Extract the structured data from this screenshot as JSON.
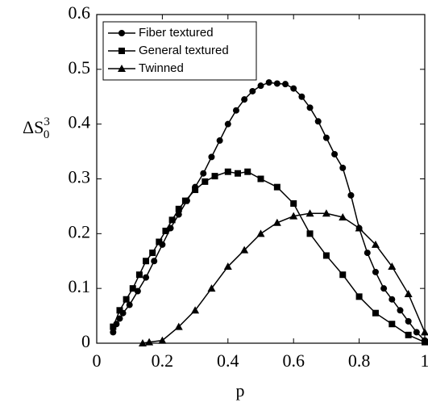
{
  "chart_data": {
    "type": "line",
    "xlabel": "p",
    "ylabel": {
      "base": "ΔS",
      "sub": "0",
      "sup": "3"
    },
    "xlim": [
      0,
      1
    ],
    "xticks": [
      0,
      0.2,
      0.4,
      0.6,
      0.8,
      1
    ],
    "ylim": [
      0,
      0.6
    ],
    "yticks": [
      0,
      0.1,
      0.2,
      0.3,
      0.4,
      0.5,
      0.6
    ],
    "legend": "upper left",
    "series": [
      {
        "name": "Fiber textured",
        "color": "#000000",
        "marker": "circle",
        "x": [
          0.05,
          0.06,
          0.07,
          0.08,
          0.1,
          0.125,
          0.15,
          0.175,
          0.2,
          0.225,
          0.25,
          0.275,
          0.3,
          0.325,
          0.35,
          0.375,
          0.4,
          0.425,
          0.45,
          0.475,
          0.5,
          0.525,
          0.55,
          0.575,
          0.6,
          0.625,
          0.65,
          0.675,
          0.7,
          0.725,
          0.75,
          0.775,
          0.8,
          0.825,
          0.85,
          0.875,
          0.9,
          0.925,
          0.95,
          0.975,
          1.0
        ],
        "values": [
          0.02,
          0.035,
          0.045,
          0.055,
          0.07,
          0.095,
          0.12,
          0.15,
          0.18,
          0.21,
          0.235,
          0.26,
          0.285,
          0.31,
          0.34,
          0.37,
          0.4,
          0.425,
          0.445,
          0.46,
          0.47,
          0.476,
          0.474,
          0.473,
          0.465,
          0.45,
          0.43,
          0.405,
          0.375,
          0.345,
          0.32,
          0.27,
          0.21,
          0.165,
          0.13,
          0.1,
          0.08,
          0.06,
          0.04,
          0.02,
          0.005
        ]
      },
      {
        "name": "General textured",
        "color": "#000000",
        "marker": "square",
        "x": [
          0.05,
          0.07,
          0.09,
          0.11,
          0.13,
          0.15,
          0.17,
          0.19,
          0.21,
          0.23,
          0.25,
          0.27,
          0.3,
          0.33,
          0.36,
          0.4,
          0.43,
          0.46,
          0.5,
          0.55,
          0.6,
          0.65,
          0.7,
          0.75,
          0.8,
          0.85,
          0.9,
          0.95,
          1.0
        ],
        "values": [
          0.03,
          0.06,
          0.08,
          0.1,
          0.125,
          0.15,
          0.165,
          0.185,
          0.205,
          0.225,
          0.245,
          0.26,
          0.28,
          0.295,
          0.305,
          0.313,
          0.31,
          0.313,
          0.3,
          0.285,
          0.255,
          0.2,
          0.16,
          0.125,
          0.085,
          0.055,
          0.035,
          0.015,
          0.002
        ]
      },
      {
        "name": "Twinned",
        "color": "#000000",
        "marker": "triangle",
        "x": [
          0.14,
          0.16,
          0.2,
          0.25,
          0.3,
          0.35,
          0.4,
          0.45,
          0.5,
          0.55,
          0.6,
          0.65,
          0.7,
          0.75,
          0.8,
          0.85,
          0.9,
          0.95,
          1.0
        ],
        "values": [
          0,
          0.002,
          0.005,
          0.03,
          0.06,
          0.1,
          0.14,
          0.17,
          0.2,
          0.22,
          0.232,
          0.237,
          0.237,
          0.23,
          0.21,
          0.18,
          0.14,
          0.09,
          0.02
        ]
      }
    ]
  }
}
